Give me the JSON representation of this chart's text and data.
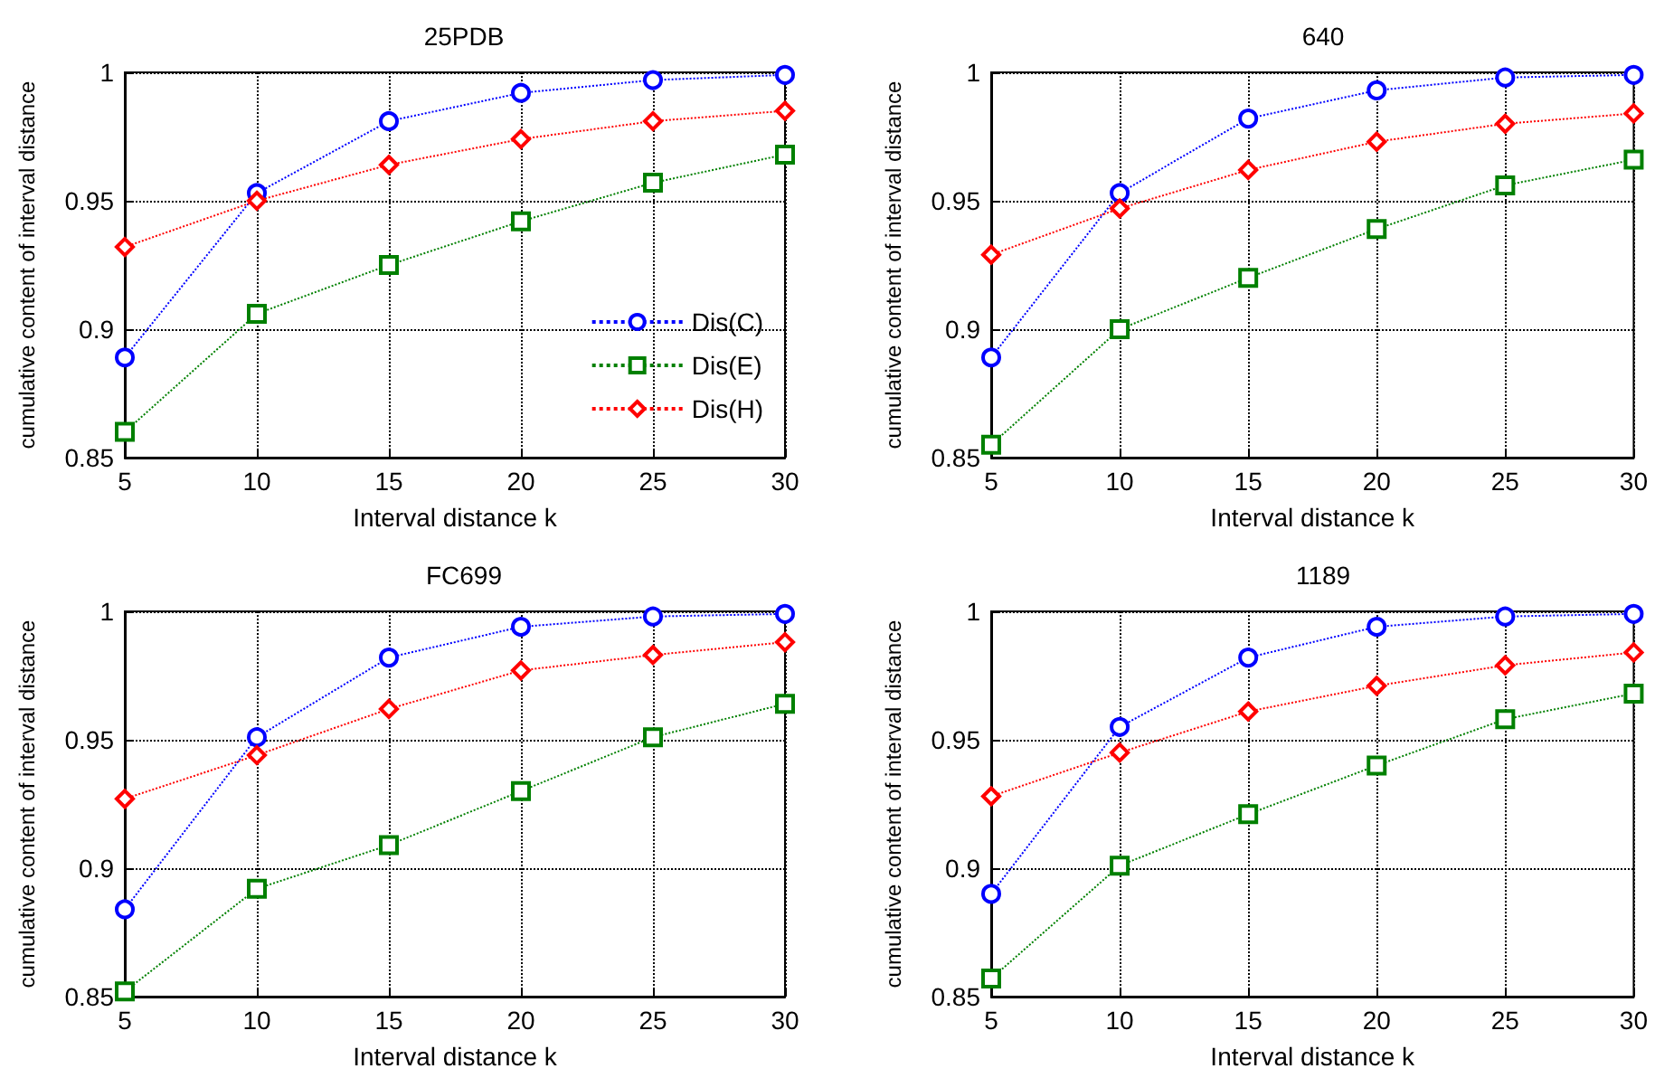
{
  "chart_data": [
    {
      "type": "line",
      "title": "25PDB",
      "xlabel": "Interval distance k",
      "ylabel": "cumulative content of interval distance",
      "x": [
        5,
        10,
        15,
        20,
        25,
        30
      ],
      "xlim": [
        5,
        30
      ],
      "ylim": [
        0.85,
        1
      ],
      "xticks": [
        5,
        10,
        15,
        20,
        25,
        30
      ],
      "yticks": [
        0.85,
        0.9,
        0.95,
        1
      ],
      "grid": true,
      "legend": "bottom right",
      "line_style": "dotted",
      "series": [
        {
          "name": "Dis(C)",
          "color": "#0000ff",
          "marker": "circle",
          "values": [
            0.889,
            0.953,
            0.981,
            0.992,
            0.997,
            0.999
          ]
        },
        {
          "name": "Dis(E)",
          "color": "#008000",
          "marker": "square",
          "values": [
            0.86,
            0.906,
            0.925,
            0.942,
            0.957,
            0.968
          ]
        },
        {
          "name": "Dis(H)",
          "color": "#ff0000",
          "marker": "diamond",
          "values": [
            0.932,
            0.95,
            0.964,
            0.974,
            0.981,
            0.985
          ]
        }
      ]
    },
    {
      "type": "line",
      "title": "640",
      "xlabel": "Interval distance k",
      "ylabel": "cumulative content of interval distance",
      "x": [
        5,
        10,
        15,
        20,
        25,
        30
      ],
      "xlim": [
        5,
        30
      ],
      "ylim": [
        0.85,
        1
      ],
      "xticks": [
        5,
        10,
        15,
        20,
        25,
        30
      ],
      "yticks": [
        0.85,
        0.9,
        0.95,
        1
      ],
      "grid": true,
      "legend": false,
      "line_style": "dotted",
      "series": [
        {
          "color": "#0000ff",
          "marker": "circle",
          "values": [
            0.889,
            0.953,
            0.982,
            0.993,
            0.998,
            0.999
          ]
        },
        {
          "color": "#008000",
          "marker": "square",
          "values": [
            0.855,
            0.9,
            0.92,
            0.939,
            0.956,
            0.966
          ]
        },
        {
          "color": "#ff0000",
          "marker": "diamond",
          "values": [
            0.929,
            0.947,
            0.962,
            0.973,
            0.98,
            0.984
          ]
        }
      ]
    },
    {
      "type": "line",
      "title": "FC699",
      "xlabel": "Interval distance k",
      "ylabel": "cumulative content of interval distance",
      "x": [
        5,
        10,
        15,
        20,
        25,
        30
      ],
      "xlim": [
        5,
        30
      ],
      "ylim": [
        0.85,
        1
      ],
      "xticks": [
        5,
        10,
        15,
        20,
        25,
        30
      ],
      "yticks": [
        0.85,
        0.9,
        0.95,
        1
      ],
      "grid": true,
      "legend": false,
      "line_style": "dotted",
      "series": [
        {
          "color": "#0000ff",
          "marker": "circle",
          "values": [
            0.884,
            0.951,
            0.982,
            0.994,
            0.998,
            0.999
          ]
        },
        {
          "color": "#008000",
          "marker": "square",
          "values": [
            0.852,
            0.892,
            0.909,
            0.93,
            0.951,
            0.964
          ]
        },
        {
          "color": "#ff0000",
          "marker": "diamond",
          "values": [
            0.927,
            0.944,
            0.962,
            0.977,
            0.983,
            0.988
          ]
        }
      ]
    },
    {
      "type": "line",
      "title": "1189",
      "xlabel": "Interval distance k",
      "ylabel": "cumulative content of interval distance",
      "x": [
        5,
        10,
        15,
        20,
        25,
        30
      ],
      "xlim": [
        5,
        30
      ],
      "ylim": [
        0.85,
        1
      ],
      "xticks": [
        5,
        10,
        15,
        20,
        25,
        30
      ],
      "yticks": [
        0.85,
        0.9,
        0.95,
        1
      ],
      "grid": true,
      "legend": false,
      "line_style": "dotted",
      "series": [
        {
          "color": "#0000ff",
          "marker": "circle",
          "values": [
            0.89,
            0.955,
            0.982,
            0.994,
            0.998,
            0.999
          ]
        },
        {
          "color": "#008000",
          "marker": "square",
          "values": [
            0.857,
            0.901,
            0.921,
            0.94,
            0.958,
            0.968
          ]
        },
        {
          "color": "#ff0000",
          "marker": "diamond",
          "values": [
            0.928,
            0.945,
            0.961,
            0.971,
            0.979,
            0.984
          ]
        }
      ]
    }
  ]
}
